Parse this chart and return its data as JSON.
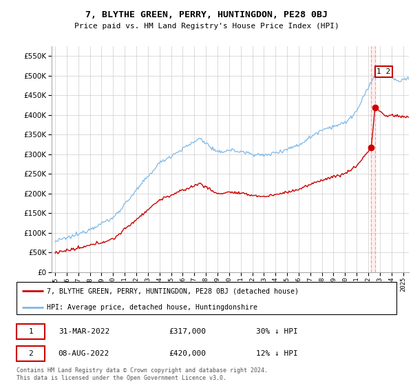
{
  "title": "7, BLYTHE GREEN, PERRY, HUNTINGDON, PE28 0BJ",
  "subtitle": "Price paid vs. HM Land Registry's House Price Index (HPI)",
  "legend_line1": "7, BLYTHE GREEN, PERRY, HUNTINGDON, PE28 0BJ (detached house)",
  "legend_line2": "HPI: Average price, detached house, Huntingdonshire",
  "sale1_label": "1",
  "sale1_date": "31-MAR-2022",
  "sale1_price": "£317,000",
  "sale1_note": "30% ↓ HPI",
  "sale1_year": 2022.25,
  "sale1_price_val": 317000,
  "sale2_label": "2",
  "sale2_date": "08-AUG-2022",
  "sale2_price": "£420,000",
  "sale2_note": "12% ↓ HPI",
  "sale2_year": 2022.583,
  "sale2_price_val": 420000,
  "footer": "Contains HM Land Registry data © Crown copyright and database right 2024.\nThis data is licensed under the Open Government Licence v3.0.",
  "hpi_color": "#7EB8E8",
  "price_color": "#CC0000",
  "ylim_max": 575000,
  "ylim_min": 0,
  "xlim_min": 1994.7,
  "xlim_max": 2025.5,
  "grid_color": "#cccccc",
  "annotation_box_color": "#CC0000"
}
